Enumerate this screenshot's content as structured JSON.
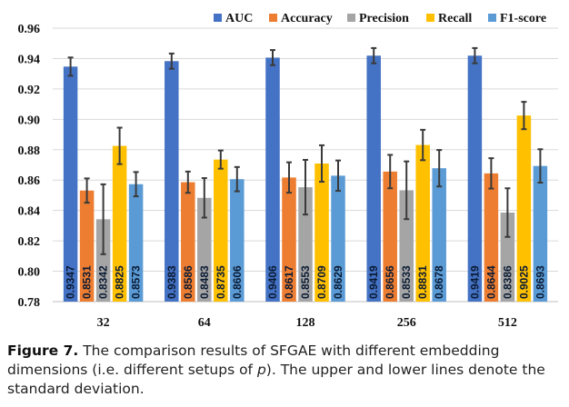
{
  "chart_data": {
    "type": "bar",
    "categories": [
      "32",
      "64",
      "128",
      "256",
      "512"
    ],
    "ylim": [
      0.78,
      0.96
    ],
    "yticks": [
      "0.78",
      "0.80",
      "0.82",
      "0.84",
      "0.86",
      "0.88",
      "0.90",
      "0.92",
      "0.94",
      "0.96"
    ],
    "grid": true,
    "legend_position": "top-right",
    "error_bars": true,
    "series": [
      {
        "name": "AUC",
        "color": "#4472C4",
        "values": [
          0.9347,
          0.9383,
          0.9406,
          0.9419,
          0.9419
        ],
        "labels": [
          "0.9347",
          "0.9383",
          "0.9406",
          "0.9419",
          "0.9419"
        ],
        "errors": [
          0.006,
          0.005,
          0.005,
          0.005,
          0.005
        ]
      },
      {
        "name": "Accuracy",
        "color": "#ED7D31",
        "values": [
          0.8531,
          0.8586,
          0.8617,
          0.8656,
          0.8644
        ],
        "labels": [
          "0.8531",
          "0.8586",
          "0.8617",
          "0.8656",
          "0.8644"
        ],
        "errors": [
          0.008,
          0.007,
          0.01,
          0.011,
          0.01
        ]
      },
      {
        "name": "Precision",
        "color": "#A5A5A5",
        "values": [
          0.8342,
          0.8483,
          0.8553,
          0.8533,
          0.8386
        ],
        "labels": [
          "0.8342",
          "0.8483",
          "0.8553",
          "0.8533",
          "0.8386"
        ],
        "errors": [
          0.023,
          0.013,
          0.018,
          0.019,
          0.016
        ]
      },
      {
        "name": "Recall",
        "color": "#FFC000",
        "values": [
          0.8825,
          0.8735,
          0.8709,
          0.8831,
          0.9025
        ],
        "labels": [
          "0.8825",
          "0.8735",
          "0.8709",
          "0.8831",
          "0.9025"
        ],
        "errors": [
          0.012,
          0.006,
          0.012,
          0.01,
          0.009
        ]
      },
      {
        "name": "F1-score",
        "color": "#5B9BD5",
        "values": [
          0.8573,
          0.8606,
          0.8629,
          0.8678,
          0.8693
        ],
        "labels": [
          "0.8573",
          "0.8606",
          "0.8629",
          "0.8678",
          "0.8693"
        ],
        "errors": [
          0.008,
          0.008,
          0.01,
          0.012,
          0.011
        ]
      }
    ]
  },
  "caption": {
    "label": "Figure 7.",
    "text": " The comparison results of SFGAE with different embedding dimensions (i.e. different setups of ",
    "variable": "p",
    "text_end": "). The upper and lower lines denote the standard deviation."
  }
}
